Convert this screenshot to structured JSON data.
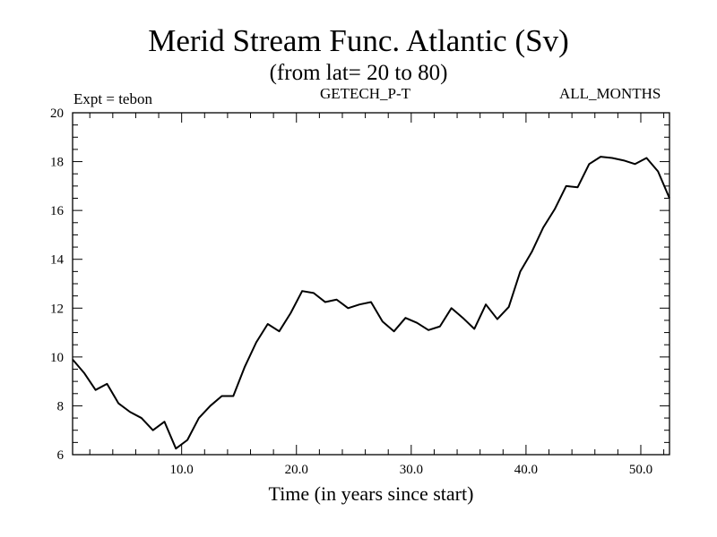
{
  "header": {
    "title": "Merid Stream Func. Atlantic (Sv)",
    "subtitle": "(from lat= 20 to 80)",
    "expt_label": "Expt = tebon",
    "forcing_label": "GETECH_P-T",
    "months_label": "ALL_MONTHS"
  },
  "chart_data": {
    "type": "line",
    "title": "Merid Stream Func. Atlantic (Sv)",
    "subtitle": "(from lat= 20 to 80)",
    "xlabel": "Time (in years since start)",
    "ylabel": "",
    "xlim": [
      0.5,
      52.5
    ],
    "ylim": [
      6,
      20
    ],
    "x_ticks": [
      10,
      20,
      30,
      40,
      50
    ],
    "x_tick_labels": [
      "10.0",
      "20.0",
      "30.0",
      "40.0",
      "50.0"
    ],
    "y_ticks": [
      6,
      8,
      10,
      12,
      14,
      16,
      18,
      20
    ],
    "y_tick_labels": [
      "6",
      "8",
      "10",
      "12",
      "14",
      "16",
      "18",
      "20"
    ],
    "grid": false,
    "line_color": "#000000",
    "series": [
      {
        "x": [
          0.5,
          1.5,
          2.5,
          3.5,
          4.5,
          5.5,
          6.5,
          7.5,
          8.5,
          9.5,
          10.5,
          11.5,
          12.5,
          13.5,
          14.5,
          15.5,
          16.5,
          17.5,
          18.5,
          19.5,
          20.5,
          21.5,
          22.5,
          23.5,
          24.5,
          25.5,
          26.5,
          27.5,
          28.5,
          29.5,
          30.5,
          31.5,
          32.5,
          33.5,
          34.5,
          35.5,
          36.5,
          37.5,
          38.5,
          39.5,
          40.5,
          41.5,
          42.5,
          43.5,
          44.5,
          45.5,
          46.5,
          47.5,
          48.5,
          49.5,
          50.5,
          51.5,
          52.5
        ],
        "values": [
          9.9,
          9.35,
          8.65,
          8.9,
          8.1,
          7.75,
          7.5,
          7.0,
          7.35,
          6.25,
          6.6,
          7.5,
          8.0,
          8.4,
          8.4,
          9.6,
          10.6,
          11.35,
          11.05,
          11.8,
          12.7,
          12.62,
          12.25,
          12.35,
          12.0,
          12.15,
          12.25,
          11.45,
          11.05,
          11.6,
          11.4,
          11.1,
          11.25,
          12.0,
          11.6,
          11.15,
          12.15,
          11.55,
          12.05,
          13.5,
          14.3,
          15.3,
          16.05,
          17.0,
          16.95,
          17.9,
          18.2,
          18.15,
          18.05,
          17.9,
          18.15,
          17.6,
          16.5
        ]
      }
    ]
  }
}
